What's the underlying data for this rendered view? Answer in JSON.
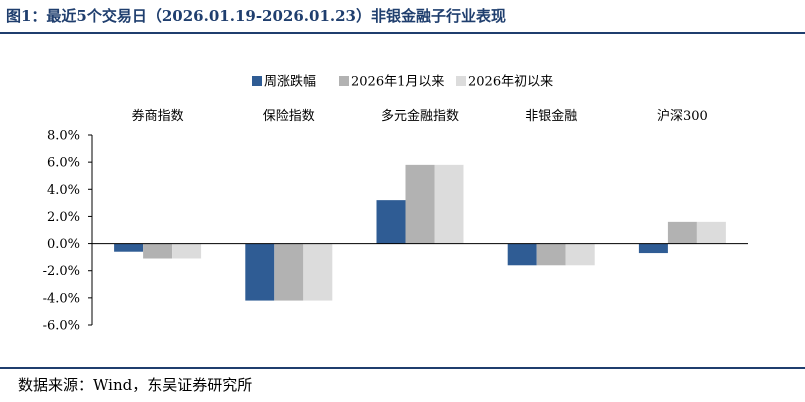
{
  "title": "图1：最近5个交易日（2026.01.19-2026.01.23）非银金融子行业表现",
  "source": "数据来源：Wind，东吴证券研究所",
  "chart_data": {
    "type": "bar",
    "categories": [
      "券商指数",
      "保险指数",
      "多元金融指数",
      "非银金融",
      "沪深300"
    ],
    "series": [
      {
        "name": "周涨跌幅",
        "color": "#2f5c94",
        "values": [
          -0.6,
          -4.2,
          3.2,
          -1.6,
          -0.7
        ]
      },
      {
        "name": "2026年1月以来",
        "color": "#b2b2b2",
        "values": [
          -1.1,
          -4.2,
          5.8,
          -1.6,
          1.6
        ]
      },
      {
        "name": "2026年初以来",
        "color": "#dcdcdc",
        "values": [
          -1.1,
          -4.2,
          5.8,
          -1.6,
          1.6
        ]
      }
    ],
    "yticks": [
      "8.0%",
      "6.0%",
      "4.0%",
      "2.0%",
      "0.0%",
      "-2.0%",
      "-4.0%",
      "-6.0%"
    ],
    "ylim": [
      -6,
      8
    ],
    "legend_position": "top-center",
    "grid": false
  }
}
